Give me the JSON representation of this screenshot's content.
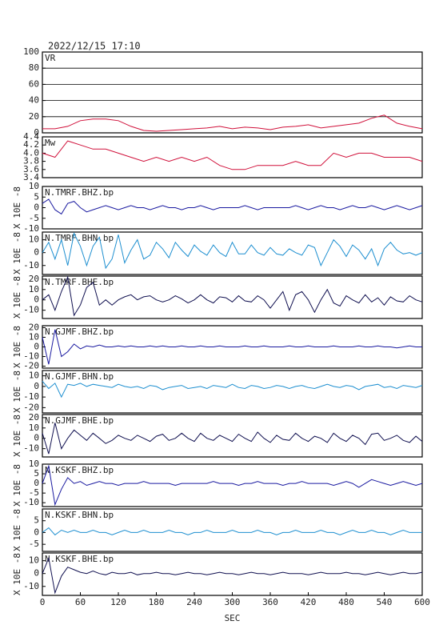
{
  "timestamp": "2022/12/15  17:10",
  "chart_data": [
    {
      "type": "line",
      "label": "VR",
      "color": "#d0103a",
      "grid": true,
      "xlim": [
        0,
        600
      ],
      "ylim": [
        0,
        100
      ],
      "yticks": [
        0,
        20,
        40,
        60,
        80,
        100
      ],
      "x": [
        0,
        20,
        40,
        60,
        80,
        100,
        120,
        140,
        160,
        180,
        200,
        220,
        240,
        260,
        280,
        300,
        320,
        340,
        360,
        380,
        400,
        420,
        440,
        460,
        480,
        500,
        520,
        540,
        560,
        580,
        600
      ],
      "values": [
        5,
        5,
        8,
        15,
        17,
        17,
        15,
        8,
        3,
        2,
        3,
        4,
        5,
        6,
        8,
        5,
        7,
        6,
        4,
        7,
        8,
        10,
        6,
        8,
        10,
        12,
        18,
        22,
        12,
        8,
        5
      ]
    },
    {
      "type": "line",
      "label": "Mw",
      "color": "#d0103a",
      "grid": false,
      "xlim": [
        0,
        600
      ],
      "ylim": [
        3.4,
        4.4
      ],
      "yticks": [
        3.4,
        3.6,
        3.8,
        {
          "value": 4,
          "label": "4.0"
        },
        4.2,
        4.4
      ],
      "x": [
        0,
        20,
        40,
        60,
        80,
        100,
        120,
        140,
        160,
        180,
        200,
        220,
        240,
        260,
        280,
        300,
        320,
        340,
        360,
        380,
        400,
        420,
        440,
        460,
        480,
        500,
        520,
        540,
        560,
        580,
        600
      ],
      "values": [
        4.0,
        3.9,
        4.3,
        4.2,
        4.1,
        4.1,
        4.0,
        3.9,
        3.8,
        3.9,
        3.8,
        3.9,
        3.8,
        3.9,
        3.7,
        3.6,
        3.6,
        3.7,
        3.7,
        3.7,
        3.8,
        3.7,
        3.7,
        4.0,
        3.9,
        4.0,
        4.0,
        3.9,
        3.9,
        3.9,
        3.8
      ]
    },
    {
      "type": "line",
      "label": "N.TMRF.BHZ.bp",
      "y_label": "X 10E -8",
      "color": "#1a1aa0",
      "xlim": [
        0,
        600
      ],
      "ylim": [
        -10,
        10
      ],
      "yticks": [
        -10,
        -5,
        0,
        5,
        10
      ],
      "x": [
        0,
        10,
        20,
        30,
        40,
        50,
        60,
        70,
        80,
        90,
        100,
        110,
        120,
        130,
        140,
        150,
        160,
        170,
        180,
        190,
        200,
        210,
        220,
        230,
        240,
        250,
        260,
        270,
        280,
        290,
        300,
        310,
        320,
        330,
        340,
        350,
        360,
        370,
        380,
        390,
        400,
        410,
        420,
        430,
        440,
        450,
        460,
        470,
        480,
        490,
        500,
        510,
        520,
        530,
        540,
        550,
        560,
        570,
        580,
        590,
        600
      ],
      "values": [
        2,
        4,
        -1,
        -3,
        2,
        3,
        0,
        -2,
        -1,
        0,
        1,
        0,
        -1,
        0,
        1,
        0,
        0,
        -1,
        0,
        1,
        0,
        0,
        -1,
        0,
        0,
        1,
        0,
        -1,
        0,
        0,
        0,
        0,
        1,
        0,
        -1,
        0,
        0,
        0,
        0,
        0,
        1,
        0,
        -1,
        0,
        1,
        0,
        0,
        -1,
        0,
        1,
        0,
        0,
        1,
        0,
        -1,
        0,
        1,
        0,
        -1,
        0,
        1
      ]
    },
    {
      "type": "line",
      "label": "N.TMRF.BHN.bp",
      "y_label": "X 10E -8",
      "color": "#1e8fd0",
      "xlim": [
        0,
        600
      ],
      "ylim": [
        -17,
        16
      ],
      "yticks": [
        -10,
        0,
        10
      ],
      "x": [
        0,
        10,
        20,
        30,
        40,
        50,
        60,
        70,
        80,
        90,
        100,
        110,
        120,
        130,
        140,
        150,
        160,
        170,
        180,
        190,
        200,
        210,
        220,
        230,
        240,
        250,
        260,
        270,
        280,
        290,
        300,
        310,
        320,
        330,
        340,
        350,
        360,
        370,
        380,
        390,
        400,
        410,
        420,
        430,
        440,
        450,
        460,
        470,
        480,
        490,
        500,
        510,
        520,
        530,
        540,
        550,
        560,
        570,
        580,
        590,
        600
      ],
      "values": [
        0,
        8,
        -5,
        10,
        -10,
        15,
        5,
        -10,
        5,
        12,
        -12,
        -5,
        14,
        -8,
        2,
        10,
        -5,
        -2,
        8,
        3,
        -4,
        8,
        2,
        -3,
        6,
        1,
        -2,
        6,
        0,
        -3,
        8,
        -1,
        -1,
        6,
        0,
        -2,
        4,
        -1,
        -2,
        3,
        0,
        -2,
        6,
        4,
        -10,
        0,
        10,
        5,
        -3,
        6,
        2,
        -5,
        3,
        -10,
        3,
        8,
        2,
        -1,
        0,
        -2,
        0
      ]
    },
    {
      "type": "line",
      "label": "N.TMRF.BHE.bp",
      "y_label": "X 10E -8",
      "color": "#101050",
      "xlim": [
        0,
        600
      ],
      "ylim": [
        -18,
        23
      ],
      "yticks": [
        -10,
        0,
        10,
        20
      ],
      "x": [
        0,
        10,
        20,
        30,
        40,
        50,
        60,
        70,
        80,
        90,
        100,
        110,
        120,
        130,
        140,
        150,
        160,
        170,
        180,
        190,
        200,
        210,
        220,
        230,
        240,
        250,
        260,
        270,
        280,
        290,
        300,
        310,
        320,
        330,
        340,
        350,
        360,
        370,
        380,
        390,
        400,
        410,
        420,
        430,
        440,
        450,
        460,
        470,
        480,
        490,
        500,
        510,
        520,
        530,
        540,
        550,
        560,
        570,
        580,
        590,
        600
      ],
      "values": [
        0,
        5,
        -10,
        8,
        22,
        -15,
        -5,
        12,
        17,
        -5,
        0,
        -5,
        0,
        3,
        5,
        0,
        3,
        4,
        0,
        -2,
        0,
        4,
        1,
        -3,
        0,
        5,
        0,
        -3,
        3,
        2,
        -2,
        4,
        -1,
        -2,
        4,
        0,
        -8,
        0,
        8,
        -10,
        5,
        8,
        0,
        -12,
        0,
        10,
        -3,
        -6,
        4,
        0,
        -3,
        5,
        -2,
        2,
        -5,
        3,
        -1,
        -2,
        4,
        0,
        -2
      ]
    },
    {
      "type": "line",
      "label": "N.GJMF.BHZ.bp",
      "y_label": "X 10E -8",
      "color": "#1a1aa0",
      "xlim": [
        0,
        600
      ],
      "ylim": [
        -22,
        22
      ],
      "yticks": [
        -20,
        -10,
        0,
        10,
        20
      ],
      "x": [
        0,
        10,
        20,
        30,
        40,
        50,
        60,
        70,
        80,
        90,
        100,
        110,
        120,
        130,
        140,
        150,
        160,
        170,
        180,
        190,
        200,
        210,
        220,
        230,
        240,
        250,
        260,
        270,
        280,
        290,
        300,
        310,
        320,
        330,
        340,
        350,
        360,
        370,
        380,
        390,
        400,
        410,
        420,
        430,
        440,
        450,
        460,
        470,
        480,
        490,
        500,
        510,
        520,
        530,
        540,
        550,
        560,
        570,
        580,
        590,
        600
      ],
      "values": [
        10,
        -18,
        18,
        -10,
        -5,
        3,
        -2,
        1,
        0,
        2,
        0,
        0,
        1,
        0,
        1,
        0,
        0,
        1,
        0,
        1,
        0,
        0,
        1,
        0,
        0,
        1,
        0,
        0,
        1,
        0,
        0,
        0,
        1,
        0,
        0,
        1,
        0,
        0,
        0,
        1,
        0,
        0,
        1,
        0,
        0,
        0,
        1,
        0,
        0,
        0,
        1,
        0,
        0,
        1,
        0,
        0,
        -1,
        0,
        1,
        0,
        0
      ]
    },
    {
      "type": "line",
      "label": "N.GJMF.BHN.bp",
      "y_label": "X 10E -8",
      "color": "#1e8fd0",
      "xlim": [
        0,
        600
      ],
      "ylim": [
        -25,
        15
      ],
      "yticks": [
        -20,
        -10,
        0,
        10
      ],
      "x": [
        0,
        10,
        20,
        30,
        40,
        50,
        60,
        70,
        80,
        90,
        100,
        110,
        120,
        130,
        140,
        150,
        160,
        170,
        180,
        190,
        200,
        210,
        220,
        230,
        240,
        250,
        260,
        270,
        280,
        290,
        300,
        310,
        320,
        330,
        340,
        350,
        360,
        370,
        380,
        390,
        400,
        410,
        420,
        430,
        440,
        450,
        460,
        470,
        480,
        490,
        500,
        510,
        520,
        530,
        540,
        550,
        560,
        570,
        580,
        590,
        600
      ],
      "values": [
        5,
        -2,
        3,
        -10,
        2,
        1,
        3,
        0,
        2,
        1,
        0,
        -1,
        2,
        0,
        -1,
        0,
        -2,
        1,
        0,
        -3,
        -1,
        0,
        1,
        -2,
        -1,
        0,
        -2,
        1,
        0,
        -1,
        2,
        -1,
        -2,
        1,
        0,
        -2,
        -1,
        1,
        0,
        -2,
        0,
        1,
        -1,
        -2,
        0,
        2,
        0,
        -1,
        1,
        0,
        -3,
        0,
        1,
        2,
        -1,
        0,
        -2,
        1,
        0,
        -1,
        1
      ]
    },
    {
      "type": "line",
      "label": "N.GJMF.BHE.bp",
      "y_label": "X 10E -8",
      "color": "#101050",
      "xlim": [
        0,
        600
      ],
      "ylim": [
        -18,
        23
      ],
      "yticks": [
        -10,
        0,
        10,
        20
      ],
      "x": [
        0,
        10,
        20,
        30,
        40,
        50,
        60,
        70,
        80,
        90,
        100,
        110,
        120,
        130,
        140,
        150,
        160,
        170,
        180,
        190,
        200,
        210,
        220,
        230,
        240,
        250,
        260,
        270,
        280,
        290,
        300,
        310,
        320,
        330,
        340,
        350,
        360,
        370,
        380,
        390,
        400,
        410,
        420,
        430,
        440,
        450,
        460,
        470,
        480,
        490,
        500,
        510,
        520,
        530,
        540,
        550,
        560,
        570,
        580,
        590,
        600
      ],
      "values": [
        5,
        -15,
        15,
        -10,
        0,
        8,
        3,
        -2,
        5,
        0,
        -5,
        -2,
        3,
        0,
        -2,
        3,
        0,
        -3,
        2,
        4,
        -2,
        0,
        5,
        0,
        -3,
        5,
        0,
        -2,
        3,
        0,
        -3,
        4,
        0,
        -3,
        6,
        0,
        -4,
        3,
        -1,
        -2,
        5,
        0,
        -3,
        2,
        0,
        -4,
        5,
        0,
        -3,
        3,
        0,
        -6,
        4,
        5,
        -2,
        0,
        3,
        -2,
        -4,
        2,
        -3
      ]
    },
    {
      "type": "line",
      "label": "N.KSKF.BHZ.bp",
      "y_label": "X 10E -8",
      "color": "#1a1aa0",
      "xlim": [
        0,
        600
      ],
      "ylim": [
        -12,
        10
      ],
      "yticks": [
        -10,
        -5,
        0,
        5,
        10
      ],
      "x": [
        0,
        10,
        20,
        30,
        40,
        50,
        60,
        70,
        80,
        90,
        100,
        110,
        120,
        130,
        140,
        150,
        160,
        170,
        180,
        190,
        200,
        210,
        220,
        230,
        240,
        250,
        260,
        270,
        280,
        290,
        300,
        310,
        320,
        330,
        340,
        350,
        360,
        370,
        380,
        390,
        400,
        410,
        420,
        430,
        440,
        450,
        460,
        470,
        480,
        490,
        500,
        510,
        520,
        530,
        540,
        550,
        560,
        570,
        580,
        590,
        600
      ],
      "values": [
        0,
        9,
        -11,
        -3,
        3,
        0,
        1,
        -1,
        0,
        1,
        0,
        0,
        -1,
        0,
        0,
        0,
        1,
        0,
        0,
        0,
        0,
        -1,
        0,
        0,
        0,
        0,
        0,
        1,
        0,
        0,
        0,
        -1,
        0,
        0,
        1,
        0,
        0,
        0,
        -1,
        0,
        0,
        1,
        0,
        0,
        0,
        0,
        -1,
        0,
        1,
        0,
        -2,
        0,
        2,
        1,
        0,
        -1,
        0,
        1,
        0,
        -1,
        0
      ]
    },
    {
      "type": "line",
      "label": "N.KSKF.BHN.bp",
      "y_label": "X 10E -8",
      "color": "#1e8fd0",
      "xlim": [
        0,
        600
      ],
      "ylim": [
        -8,
        10
      ],
      "yticks": [
        -5,
        0,
        5
      ],
      "x": [
        0,
        10,
        20,
        30,
        40,
        50,
        60,
        70,
        80,
        90,
        100,
        110,
        120,
        130,
        140,
        150,
        160,
        170,
        180,
        190,
        200,
        210,
        220,
        230,
        240,
        250,
        260,
        270,
        280,
        290,
        300,
        310,
        320,
        330,
        340,
        350,
        360,
        370,
        380,
        390,
        400,
        410,
        420,
        430,
        440,
        450,
        460,
        470,
        480,
        490,
        500,
        510,
        520,
        530,
        540,
        550,
        560,
        570,
        580,
        590,
        600
      ],
      "values": [
        0,
        2,
        -1,
        1,
        0,
        1,
        0,
        0,
        1,
        0,
        0,
        -1,
        0,
        1,
        0,
        0,
        1,
        0,
        0,
        0,
        1,
        0,
        0,
        -1,
        0,
        0,
        1,
        0,
        0,
        0,
        1,
        0,
        0,
        0,
        1,
        0,
        0,
        -1,
        0,
        0,
        1,
        0,
        0,
        0,
        1,
        0,
        0,
        -1,
        0,
        1,
        0,
        0,
        1,
        0,
        0,
        -1,
        0,
        1,
        0,
        0,
        0
      ]
    },
    {
      "type": "line",
      "label": "N.KSKF.BHE.bp",
      "y_label": "X 10E -8",
      "color": "#101050",
      "xlim": [
        0,
        600
      ],
      "ylim": [
        -17,
        16
      ],
      "yticks": [
        -10,
        0,
        10
      ],
      "xticks": [
        0,
        60,
        120,
        180,
        240,
        300,
        360,
        420,
        480,
        540,
        600
      ],
      "x_label": "SEC",
      "x": [
        0,
        10,
        20,
        30,
        40,
        50,
        60,
        70,
        80,
        90,
        100,
        110,
        120,
        130,
        140,
        150,
        160,
        170,
        180,
        190,
        200,
        210,
        220,
        230,
        240,
        250,
        260,
        270,
        280,
        290,
        300,
        310,
        320,
        330,
        340,
        350,
        360,
        370,
        380,
        390,
        400,
        410,
        420,
        430,
        440,
        450,
        460,
        470,
        480,
        490,
        500,
        510,
        520,
        530,
        540,
        550,
        560,
        570,
        580,
        590,
        600
      ],
      "values": [
        0,
        12,
        -15,
        -2,
        5,
        3,
        1,
        0,
        2,
        0,
        -1,
        1,
        0,
        0,
        1,
        -1,
        0,
        0,
        1,
        0,
        0,
        -1,
        0,
        1,
        0,
        0,
        -1,
        0,
        1,
        0,
        0,
        -1,
        0,
        1,
        0,
        0,
        -1,
        0,
        1,
        0,
        0,
        0,
        -1,
        0,
        1,
        0,
        0,
        0,
        1,
        0,
        0,
        -1,
        0,
        1,
        0,
        -1,
        0,
        1,
        0,
        0,
        1
      ]
    }
  ]
}
